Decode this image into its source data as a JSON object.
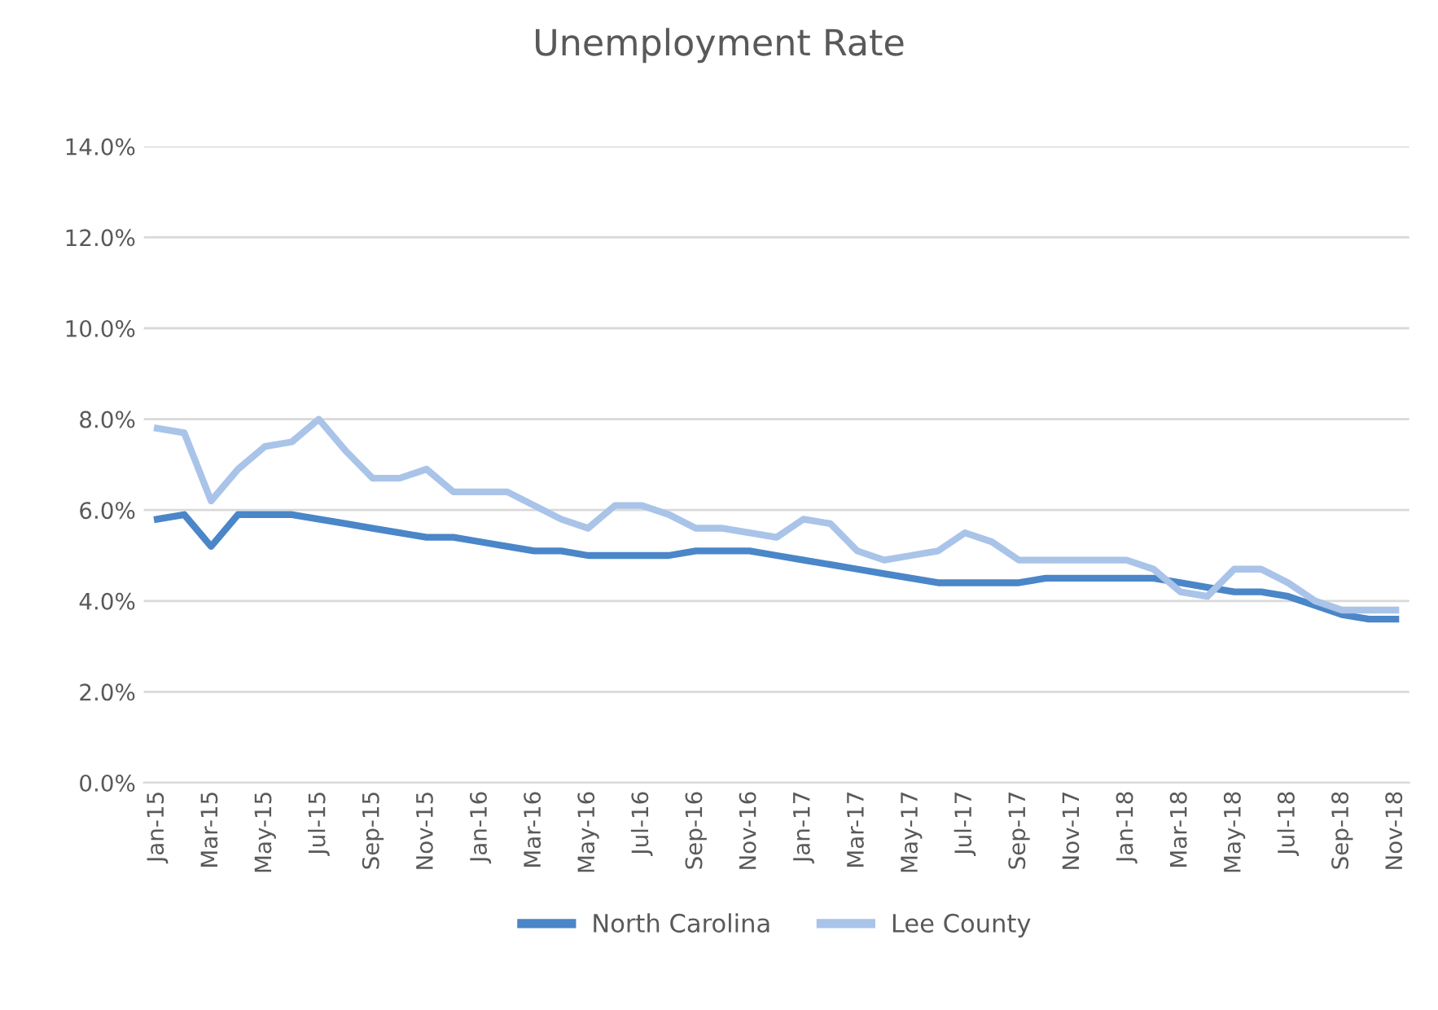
{
  "chart_data": {
    "type": "line",
    "title": "Unemployment Rate",
    "categories": [
      "Jan-15",
      null,
      "Mar-15",
      null,
      "May-15",
      null,
      "Jul-15",
      null,
      "Sep-15",
      null,
      "Nov-15",
      null,
      "Jan-16",
      null,
      "Mar-16",
      null,
      "May-16",
      null,
      "Jul-16",
      null,
      "Sep-16",
      null,
      "Nov-16",
      null,
      "Jan-17",
      null,
      "Mar-17",
      null,
      "May-17",
      null,
      "Jul-17",
      null,
      "Sep-17",
      null,
      "Nov-17",
      null,
      "Jan-18",
      null,
      "Mar-18",
      null,
      "May-18",
      null,
      "Jul-18",
      null,
      "Sep-18",
      null,
      "Nov-18"
    ],
    "series": [
      {
        "name": "North Carolina",
        "color": "#4a86c8",
        "values": [
          5.8,
          5.9,
          5.2,
          5.9,
          5.9,
          5.9,
          5.8,
          5.7,
          5.6,
          5.5,
          5.4,
          5.4,
          5.3,
          5.2,
          5.1,
          5.1,
          5.0,
          5.0,
          5.0,
          5.0,
          5.1,
          5.1,
          5.1,
          5.0,
          4.9,
          4.8,
          4.7,
          4.6,
          4.5,
          4.4,
          4.4,
          4.4,
          4.4,
          4.5,
          4.5,
          4.5,
          4.5,
          4.5,
          4.4,
          4.3,
          4.2,
          4.2,
          4.1,
          3.9,
          3.7,
          3.6,
          3.6
        ]
      },
      {
        "name": "Lee County",
        "color": "#a9c4e8",
        "values": [
          7.8,
          7.7,
          6.2,
          6.9,
          7.4,
          7.5,
          8.0,
          7.3,
          6.7,
          6.7,
          6.9,
          6.4,
          6.4,
          6.4,
          6.1,
          5.8,
          5.6,
          6.1,
          6.1,
          5.9,
          5.6,
          5.6,
          5.5,
          5.4,
          5.8,
          5.7,
          5.1,
          4.9,
          5.0,
          5.1,
          5.5,
          5.3,
          4.9,
          4.9,
          4.9,
          4.9,
          4.9,
          4.7,
          4.2,
          4.1,
          4.7,
          4.7,
          4.4,
          4.0,
          3.8,
          3.8,
          3.8
        ]
      }
    ],
    "ylim": [
      0,
      14
    ],
    "yticks": [
      {
        "value": 0,
        "label": "0.0%"
      },
      {
        "value": 2,
        "label": "2.0%"
      },
      {
        "value": 4,
        "label": "4.0%"
      },
      {
        "value": 6,
        "label": "6.0%"
      },
      {
        "value": 8,
        "label": "8.0%"
      },
      {
        "value": 10,
        "label": "10.0%"
      },
      {
        "value": 12,
        "label": "12.0%"
      },
      {
        "value": 14,
        "label": "14.0%"
      }
    ],
    "grid": "y",
    "legend": "bottom",
    "marker": "none",
    "line_style": "solid"
  }
}
